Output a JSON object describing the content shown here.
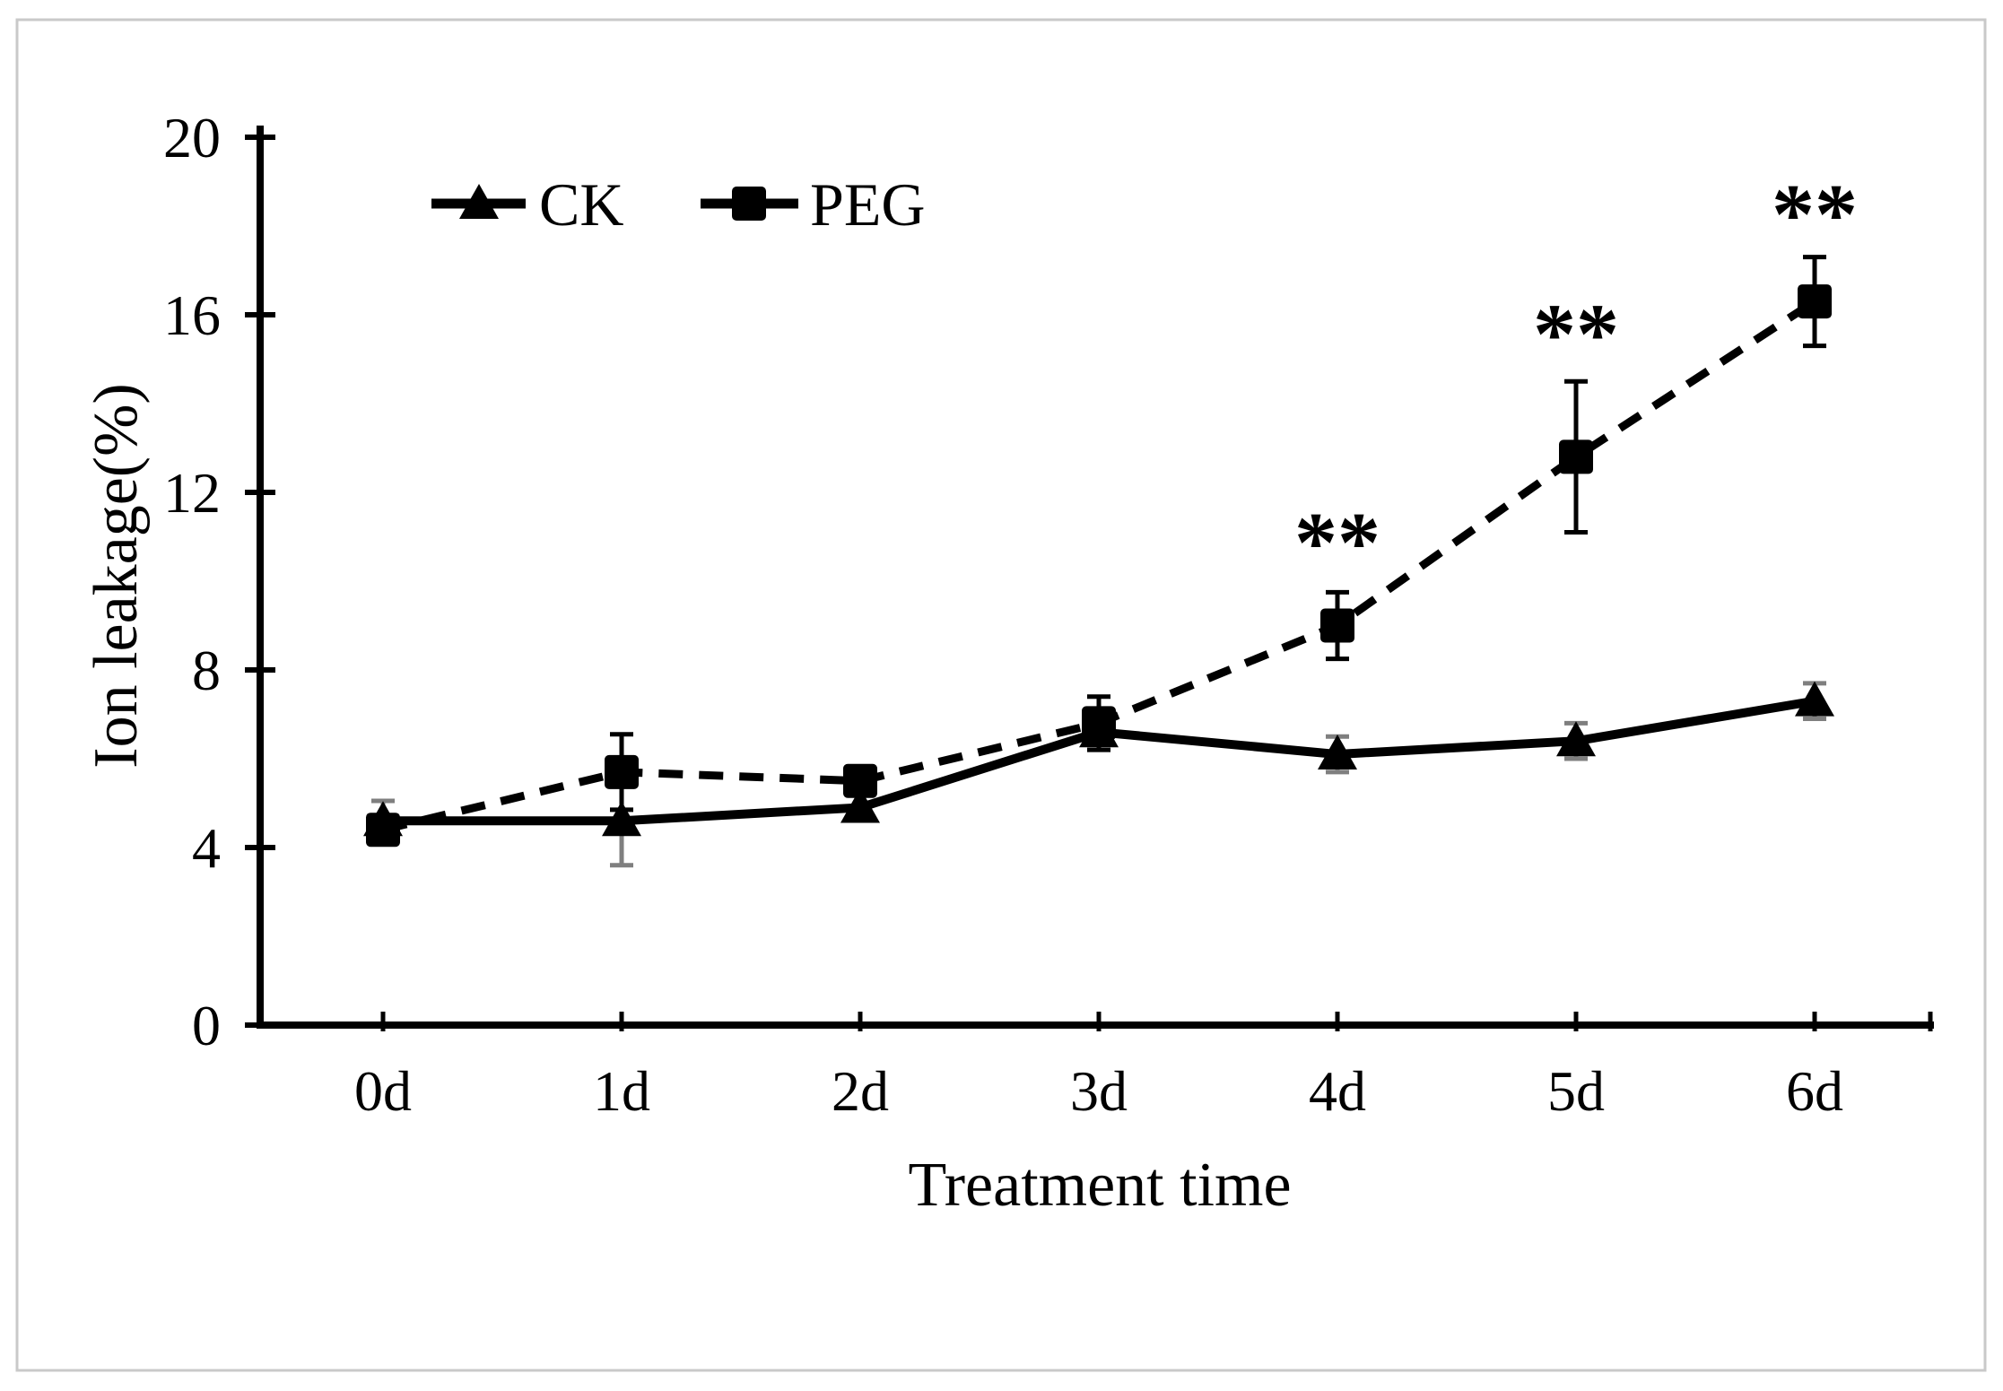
{
  "figure": {
    "background": "#ffffff",
    "border_color": "#c9c9c9"
  },
  "chart_data": {
    "type": "line",
    "title": "",
    "xlabel": "Treatment time",
    "ylabel": "Ion leakage(%)",
    "categories": [
      "0d",
      "1d",
      "2d",
      "3d",
      "4d",
      "5d",
      "6d"
    ],
    "ylim": [
      0,
      20
    ],
    "yticks": [
      0,
      4,
      8,
      12,
      16,
      20
    ],
    "grid": false,
    "legend": {
      "position": "inside-top-left",
      "entries": [
        "CK",
        "PEG"
      ]
    },
    "series": [
      {
        "name": "CK",
        "marker": "triangle",
        "line_style": "solid",
        "color": "#000000",
        "error_bar_color": "#7f7f7f",
        "values": [
          4.6,
          4.6,
          4.9,
          6.6,
          6.1,
          6.4,
          7.3
        ],
        "errors": [
          0.45,
          1.0,
          0,
          0,
          0.4,
          0.4,
          0.4
        ]
      },
      {
        "name": "PEG",
        "marker": "square",
        "line_style": "dashed",
        "color": "#000000",
        "error_bar_color": "#000000",
        "values": [
          4.4,
          5.7,
          5.5,
          6.8,
          9.0,
          12.8,
          16.3
        ],
        "errors": [
          0,
          0.85,
          0,
          0.6,
          0.75,
          1.7,
          1.0
        ]
      }
    ],
    "annotations": [
      {
        "text": "**",
        "category": "4d",
        "y": 11.1
      },
      {
        "text": "**",
        "category": "5d",
        "y": 15.8
      },
      {
        "text": "**",
        "category": "6d",
        "y": 18.5
      }
    ]
  }
}
